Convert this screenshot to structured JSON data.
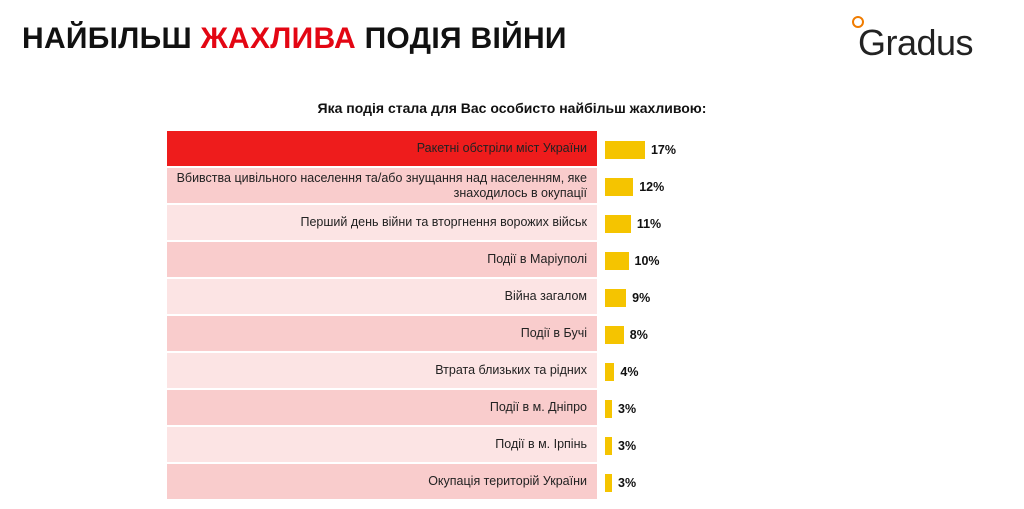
{
  "chart_data": {
    "type": "bar",
    "title_parts": [
      {
        "text": "НАЙБІЛЬШ ",
        "color": "#111111"
      },
      {
        "text": "ЖАХЛИВА",
        "color": "#e30613"
      },
      {
        "text": " ПОДІЯ ВІЙНИ",
        "color": "#111111"
      }
    ],
    "logo": "Gradus",
    "subtitle": "Яка подія стала для Вас особисто найбільш жахливою:",
    "categories": [
      "Ракетні обстріли міст України",
      "Вбивства цивільного населення та/або знущання над населенням, яке знаходилось в окупації",
      "Перший день війни та вторгнення ворожих військ",
      "Події в Маріуполі",
      "Війна загалом",
      "Події в Бучі",
      "Втрата близьких та рідних",
      "Події в м. Дніпро",
      "Події в м. Ірпінь",
      "Окупація територій України"
    ],
    "values": [
      17,
      12,
      11,
      10,
      9,
      8,
      4,
      3,
      3,
      3
    ],
    "value_labels": [
      "17%",
      "12%",
      "11%",
      "10%",
      "9%",
      "8%",
      "4%",
      "3%",
      "3%",
      "3%"
    ],
    "color": "#f5c400",
    "row_colors": [
      "#ee1c1c",
      "#f9cccc",
      "#fce4e4",
      "#f9cccc",
      "#fce4e4",
      "#f9cccc",
      "#fce4e4",
      "#f9cccc",
      "#fce4e4",
      "#f9cccc"
    ]
  }
}
